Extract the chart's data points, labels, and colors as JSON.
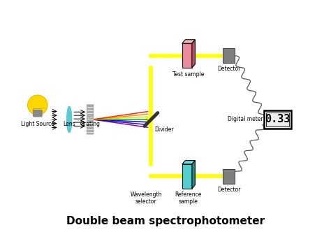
{
  "title": "Double beam spectrophotometer",
  "title_fontsize": 11,
  "bg_color": "#ffffff",
  "labels": {
    "light_source": "Light Source",
    "lens": "Lens",
    "grating": "Grating",
    "divider": "Divider",
    "test_sample": "Test sample",
    "reference_sample": "Reference\nsample",
    "wavelength_selector": "Wavelength\nselector",
    "detector_top": "Detector",
    "detector_bottom": "Detector",
    "digital_meter": "Digital meter",
    "digital_value": "0.33"
  },
  "colors": {
    "bulb_yellow": "#FFD700",
    "lens_cyan": "#5bc8d4",
    "grating_gray": "#aaaaaa",
    "beam_yellow": "#FFFF00",
    "test_sample_pink": "#e87a8e",
    "reference_sample_cyan": "#40c8c8",
    "detector_gray": "#808080",
    "mirror_dark": "#333333",
    "wire_color": "#555555"
  }
}
